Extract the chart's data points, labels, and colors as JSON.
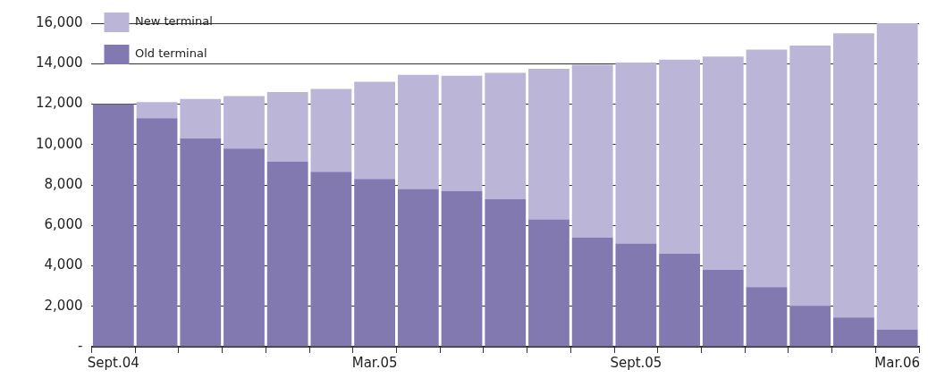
{
  "chart_data": {
    "type": "bar",
    "stacked": true,
    "categories": [
      "Sept.04",
      null,
      null,
      null,
      null,
      null,
      "Mar.05",
      null,
      null,
      null,
      null,
      null,
      "Sept.05",
      null,
      null,
      null,
      null,
      null,
      "Mar.06"
    ],
    "series": [
      {
        "name": "Old terminal",
        "color": "#8279b1",
        "values": [
          12000,
          11300,
          10300,
          9800,
          9150,
          8650,
          8300,
          7800,
          7700,
          7300,
          6300,
          5400,
          5100,
          4600,
          3800,
          2950,
          2000,
          1450,
          850
        ]
      },
      {
        "name": "New terminal",
        "color": "#bbb5d8",
        "values": [
          0,
          800,
          1950,
          2600,
          3450,
          4100,
          4800,
          5650,
          5700,
          6250,
          7450,
          8550,
          8950,
          9600,
          10550,
          11750,
          12900,
          14050,
          15150
        ]
      }
    ],
    "ylim": [
      0,
      16000
    ],
    "yticks": [
      {
        "value": 0,
        "label": "-"
      },
      {
        "value": 2000,
        "label": "2,000"
      },
      {
        "value": 4000,
        "label": "4,000"
      },
      {
        "value": 6000,
        "label": "6,000"
      },
      {
        "value": 8000,
        "label": "8,000"
      },
      {
        "value": 10000,
        "label": "10,000"
      },
      {
        "value": 12000,
        "label": "12,000"
      },
      {
        "value": 14000,
        "label": "14,000"
      },
      {
        "value": 16000,
        "label": "16,000"
      }
    ],
    "grid": "y",
    "legend": "top left"
  }
}
